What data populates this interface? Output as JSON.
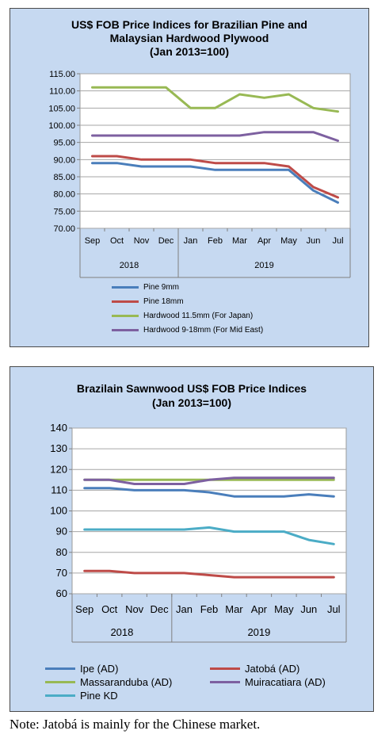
{
  "chart_data": [
    {
      "type": "line",
      "title_lines": [
        "US$ FOB Price Indices for Brazilian Pine and",
        "Malaysian Hardwood Plywood",
        "(Jan 2013=100)"
      ],
      "categories": [
        "Sep",
        "Oct",
        "Nov",
        "Dec",
        "Jan",
        "Feb",
        "Mar",
        "Apr",
        "May",
        "Jun",
        "Jul"
      ],
      "year_groups": [
        {
          "label": "2018",
          "count": 4
        },
        {
          "label": "2019",
          "count": 7
        }
      ],
      "ylim": [
        70,
        115
      ],
      "ytick_step": 5,
      "ytick_decimals": 2,
      "grid": "horizontal",
      "legend_placement": "bottom",
      "series": [
        {
          "name": "Pine 9mm",
          "color": "#4a7ebb",
          "values": [
            89,
            89,
            88,
            88,
            88,
            87,
            87,
            87,
            87,
            81,
            77.5
          ]
        },
        {
          "name": "Pine 18mm",
          "color": "#be4b48",
          "values": [
            91,
            91,
            90,
            90,
            90,
            89,
            89,
            89,
            88,
            82,
            79
          ]
        },
        {
          "name": "Hardwood 11.5mm (For Japan)",
          "color": "#98b954",
          "values": [
            111,
            111,
            111,
            111,
            105,
            105,
            109,
            108,
            109,
            105,
            104
          ]
        },
        {
          "name": "Hardwood 9-18mm (For Mid East)",
          "color": "#7d60a0",
          "values": [
            97,
            97,
            97,
            97,
            97,
            97,
            97,
            98,
            98,
            98,
            95.5
          ]
        }
      ]
    },
    {
      "type": "line",
      "title_lines": [
        "Brazilain Sawnwood US$ FOB Price Indices",
        "(Jan 2013=100)"
      ],
      "categories": [
        "Sep",
        "Oct",
        "Nov",
        "Dec",
        "Jan",
        "Feb",
        "Mar",
        "Apr",
        "May",
        "Jun",
        "Jul"
      ],
      "year_groups": [
        {
          "label": "2018",
          "count": 4
        },
        {
          "label": "2019",
          "count": 7
        }
      ],
      "ylim": [
        60,
        140
      ],
      "ytick_step": 10,
      "ytick_decimals": 0,
      "grid": "horizontal",
      "legend_placement": "bottom",
      "series": [
        {
          "name": "Ipe (AD)",
          "color": "#4a7ebb",
          "values": [
            111,
            111,
            110,
            110,
            110,
            109,
            107,
            107,
            107,
            108,
            107
          ]
        },
        {
          "name": "Jatobá (AD)",
          "color": "#be4b48",
          "values": [
            71,
            71,
            70,
            70,
            70,
            69,
            68,
            68,
            68,
            68,
            68
          ]
        },
        {
          "name": "Massaranduba (AD)",
          "color": "#98b954",
          "values": [
            115,
            115,
            115,
            115,
            115,
            115,
            115,
            115,
            115,
            115,
            115
          ]
        },
        {
          "name": "Muiracatiara (AD)",
          "color": "#7d60a0",
          "values": [
            115,
            115,
            113,
            113,
            113,
            115,
            116,
            116,
            116,
            116,
            116
          ]
        },
        {
          "name": "Pine KD",
          "color": "#4bacc6",
          "values": [
            91,
            91,
            91,
            91,
            91,
            92,
            90,
            90,
            90,
            86,
            84
          ]
        }
      ]
    }
  ],
  "note": "Note: Jatobá is mainly for the Chinese market."
}
